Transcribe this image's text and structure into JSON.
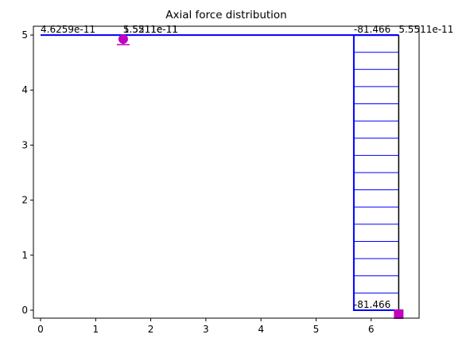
{
  "chart_data": {
    "type": "frame",
    "title": "Axial force distribution",
    "xlim": [
      -0.13,
      6.87
    ],
    "ylim": [
      -0.145,
      5.16
    ],
    "xticks": [
      0,
      1,
      2,
      3,
      4,
      5,
      6
    ],
    "yticks": [
      0,
      1,
      2,
      3,
      4,
      5
    ],
    "member_color": "#000000",
    "diagram_color": "#0000ff",
    "diagram_scale": 0.01,
    "members": [
      {
        "x": [
          0,
          1.5
        ],
        "y": [
          5,
          5
        ],
        "values": [
          4.6259e-11,
          5.5511e-11
        ]
      },
      {
        "x": [
          1.5,
          6.5
        ],
        "y": [
          5,
          5
        ],
        "values": [
          1.5211e-11,
          5.5511e-11
        ]
      },
      {
        "x": [
          6.5,
          6.5
        ],
        "y": [
          0,
          5
        ],
        "values": [
          -81.466,
          -81.466
        ]
      }
    ],
    "supports": [
      {
        "x": 1.5,
        "y": 5,
        "type": "pin",
        "color": "#bf00bf"
      },
      {
        "x": 6.5,
        "y": 0,
        "type": "fixed",
        "color": "#bf00bf"
      }
    ]
  }
}
